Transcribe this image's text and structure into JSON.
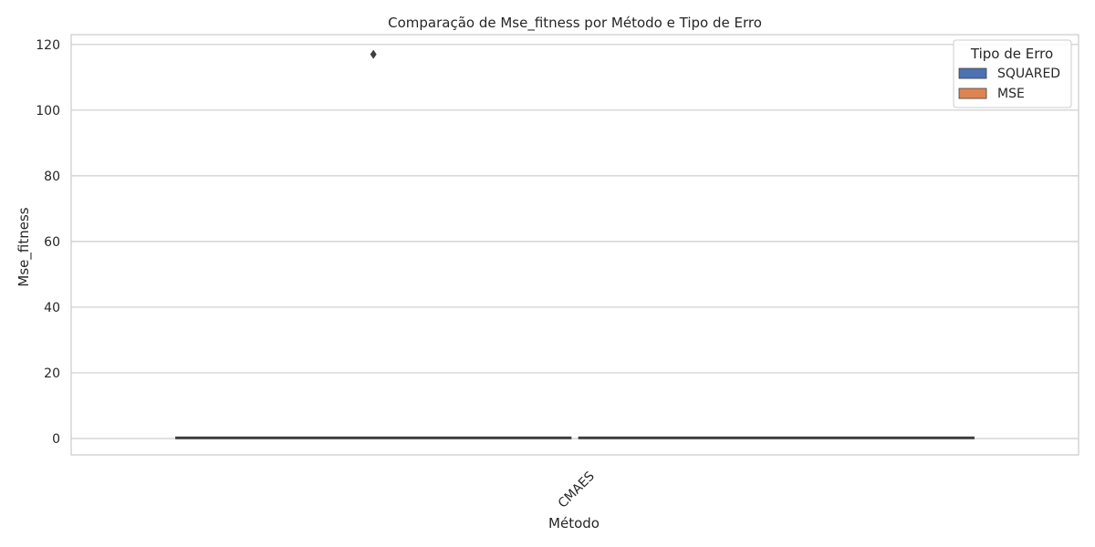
{
  "chart_data": {
    "type": "box",
    "title": "Comparação de Mse_fitness por Método e Tipo de Erro",
    "xlabel": "Método",
    "ylabel": "Mse_fitness",
    "categories": [
      "CMAES"
    ],
    "ylim": [
      -5,
      123
    ],
    "yticks": [
      0,
      20,
      40,
      60,
      80,
      100,
      120
    ],
    "grid": true,
    "legend": {
      "title": "Tipo de Erro",
      "position": "top-right"
    },
    "series": [
      {
        "name": "SQUARED",
        "color": "#4c72b0",
        "boxes": [
          {
            "category": "CMAES",
            "q1": 0.2,
            "median": 0.3,
            "q3": 0.4,
            "whisker_low": 0.1,
            "whisker_high": 0.5,
            "outliers": [
              117
            ]
          }
        ]
      },
      {
        "name": "MSE",
        "color": "#dd8452",
        "boxes": [
          {
            "category": "CMAES",
            "q1": 0.2,
            "median": 0.3,
            "q3": 0.4,
            "whisker_low": 0.1,
            "whisker_high": 0.5,
            "outliers": []
          }
        ]
      }
    ]
  }
}
